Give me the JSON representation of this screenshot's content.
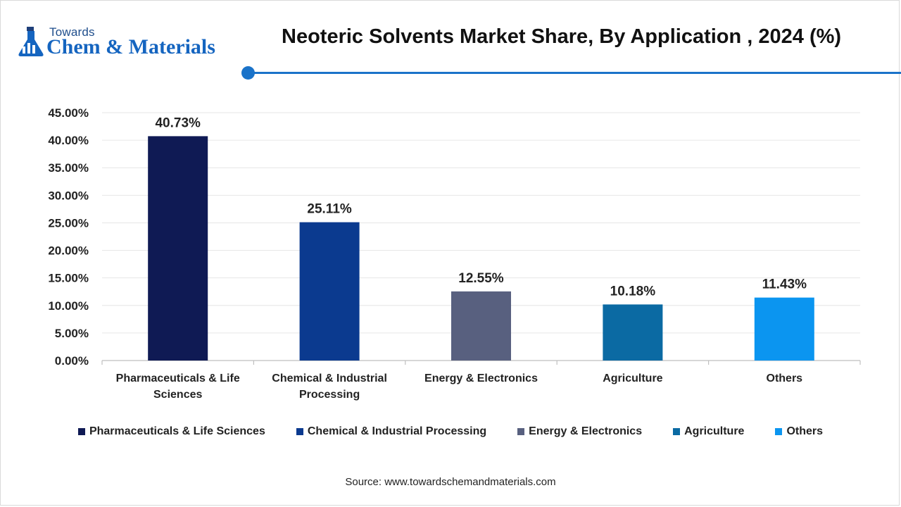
{
  "logo": {
    "top_text": "Towards",
    "main_text": "Chem & Materials",
    "icon": "flask-icon",
    "color": "#1565c0"
  },
  "source": "Source: www.towardschemandmaterials.com",
  "accent_color": "#1a73c9",
  "chart_data": {
    "type": "bar",
    "title": "Neoteric Solvents Market Share, By Application , 2024 (%)",
    "xlabel": "",
    "ylabel": "",
    "categories": [
      "Pharmaceuticals & Life Sciences",
      "Chemical & Industrial Processing",
      "Energy & Electronics",
      "Agriculture",
      "Others"
    ],
    "category_label_lines": [
      [
        "Pharmaceuticals & Life",
        "Sciences"
      ],
      [
        "Chemical & Industrial",
        "Processing"
      ],
      [
        "Energy & Electronics"
      ],
      [
        "Agriculture"
      ],
      [
        "Others"
      ]
    ],
    "values": [
      40.73,
      25.11,
      12.55,
      10.18,
      11.43
    ],
    "data_labels": [
      "40.73%",
      "25.11%",
      "12.55%",
      "10.18%",
      "11.43%"
    ],
    "colors": [
      "#0f1a54",
      "#0b3a8f",
      "#58607f",
      "#0b6aa3",
      "#0b95f0"
    ],
    "ylim": [
      0,
      45
    ],
    "yticks": [
      0,
      5,
      10,
      15,
      20,
      25,
      30,
      35,
      40,
      45
    ],
    "ytick_labels": [
      "0.00%",
      "5.00%",
      "10.00%",
      "15.00%",
      "20.00%",
      "25.00%",
      "30.00%",
      "35.00%",
      "40.00%",
      "45.00%"
    ],
    "grid": true,
    "legend": "bottom",
    "legend_entries": [
      "Pharmaceuticals & Life Sciences",
      "Chemical & Industrial Processing",
      "Energy & Electronics",
      "Agriculture",
      "Others"
    ]
  }
}
